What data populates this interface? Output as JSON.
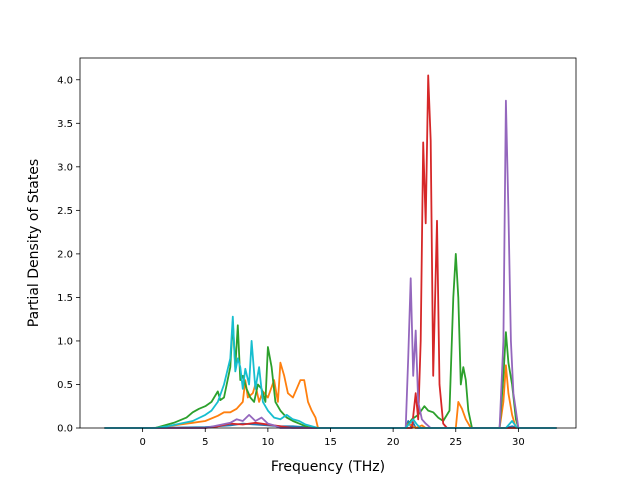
{
  "chart_data": {
    "type": "line",
    "title": "",
    "xlabel": "Frequency (THz)",
    "ylabel": "Partial Density of States",
    "xlim": [
      -5.0,
      34.6
    ],
    "ylim": [
      0.0,
      4.25
    ],
    "xticks": [
      0,
      5,
      10,
      15,
      20,
      25,
      30
    ],
    "xtick_labels": [
      "0",
      "5",
      "10",
      "15",
      "20",
      "25",
      "30"
    ],
    "yticks": [
      0.0,
      0.5,
      1.0,
      1.5,
      2.0,
      2.5,
      3.0,
      3.5,
      4.0
    ],
    "ytick_labels": [
      "0.0",
      "0.5",
      "1.0",
      "1.5",
      "2.0",
      "2.5",
      "3.0",
      "3.5",
      "4.0"
    ],
    "grid": false,
    "legend": "none",
    "series": [
      {
        "color": "#1f77b4",
        "points": [
          [
            -3,
            0
          ],
          [
            0,
            0
          ],
          [
            5,
            0.01
          ],
          [
            7,
            0.03
          ],
          [
            8,
            0.05
          ],
          [
            9,
            0.04
          ],
          [
            10,
            0.03
          ],
          [
            11,
            0.02
          ],
          [
            12,
            0.02
          ],
          [
            13,
            0.01
          ],
          [
            14,
            0
          ],
          [
            21,
            0
          ],
          [
            21.2,
            0.08
          ],
          [
            21.4,
            0.02
          ],
          [
            21.6,
            0.06
          ],
          [
            21.8,
            0
          ],
          [
            29,
            0
          ],
          [
            29.5,
            0.02
          ],
          [
            30,
            0
          ],
          [
            33,
            0
          ]
        ]
      },
      {
        "color": "#ff7f0e",
        "points": [
          [
            -3,
            0
          ],
          [
            1,
            0
          ],
          [
            2,
            0.02
          ],
          [
            3,
            0.04
          ],
          [
            4,
            0.06
          ],
          [
            5,
            0.08
          ],
          [
            6,
            0.14
          ],
          [
            6.5,
            0.18
          ],
          [
            7,
            0.18
          ],
          [
            7.5,
            0.22
          ],
          [
            8,
            0.3
          ],
          [
            8.2,
            0.55
          ],
          [
            8.4,
            0.35
          ],
          [
            8.8,
            0.4
          ],
          [
            9,
            0.5
          ],
          [
            9.3,
            0.3
          ],
          [
            9.6,
            0.42
          ],
          [
            10,
            0.35
          ],
          [
            10.5,
            0.55
          ],
          [
            10.8,
            0.3
          ],
          [
            11,
            0.75
          ],
          [
            11.3,
            0.6
          ],
          [
            11.6,
            0.4
          ],
          [
            12,
            0.35
          ],
          [
            12.3,
            0.45
          ],
          [
            12.6,
            0.55
          ],
          [
            12.9,
            0.55
          ],
          [
            13.2,
            0.3
          ],
          [
            13.5,
            0.2
          ],
          [
            13.8,
            0.12
          ],
          [
            14,
            0
          ],
          [
            21,
            0
          ],
          [
            21.2,
            0.05
          ],
          [
            21.8,
            0
          ],
          [
            22.3,
            0.03
          ],
          [
            22.6,
            0
          ],
          [
            25,
            0
          ],
          [
            25.2,
            0.3
          ],
          [
            25.5,
            0.22
          ],
          [
            25.8,
            0.1
          ],
          [
            26,
            0.05
          ],
          [
            26.2,
            0
          ],
          [
            28.5,
            0
          ],
          [
            28.8,
            0.3
          ],
          [
            29,
            0.72
          ],
          [
            29.2,
            0.4
          ],
          [
            29.5,
            0.15
          ],
          [
            29.8,
            0
          ],
          [
            33,
            0
          ]
        ]
      },
      {
        "color": "#2ca02c",
        "points": [
          [
            -3,
            0
          ],
          [
            1,
            0
          ],
          [
            1.5,
            0.02
          ],
          [
            2.5,
            0.06
          ],
          [
            3.5,
            0.12
          ],
          [
            4,
            0.18
          ],
          [
            4.5,
            0.22
          ],
          [
            5,
            0.25
          ],
          [
            5.5,
            0.3
          ],
          [
            6,
            0.42
          ],
          [
            6.2,
            0.32
          ],
          [
            6.5,
            0.35
          ],
          [
            7,
            0.7
          ],
          [
            7.2,
            1.22
          ],
          [
            7.4,
            0.7
          ],
          [
            7.6,
            1.18
          ],
          [
            7.8,
            0.55
          ],
          [
            8,
            0.6
          ],
          [
            8.3,
            0.45
          ],
          [
            8.6,
            0.35
          ],
          [
            8.9,
            0.3
          ],
          [
            9.2,
            0.5
          ],
          [
            9.5,
            0.45
          ],
          [
            9.8,
            0.3
          ],
          [
            10,
            0.93
          ],
          [
            10.3,
            0.7
          ],
          [
            10.6,
            0.3
          ],
          [
            11,
            0.2
          ],
          [
            11.5,
            0.12
          ],
          [
            12,
            0.08
          ],
          [
            12.5,
            0.05
          ],
          [
            13,
            0.02
          ],
          [
            13.5,
            0
          ],
          [
            21,
            0
          ],
          [
            21.5,
            0.1
          ],
          [
            22,
            0.15
          ],
          [
            22.5,
            0.25
          ],
          [
            22.8,
            0.2
          ],
          [
            23.2,
            0.18
          ],
          [
            23.6,
            0.12
          ],
          [
            24,
            0.08
          ],
          [
            24.5,
            0.2
          ],
          [
            24.8,
            1.5
          ],
          [
            25,
            2.0
          ],
          [
            25.2,
            1.5
          ],
          [
            25.4,
            0.5
          ],
          [
            25.6,
            0.7
          ],
          [
            25.8,
            0.55
          ],
          [
            26,
            0.2
          ],
          [
            26.3,
            0
          ],
          [
            28.5,
            0
          ],
          [
            28.8,
            0.6
          ],
          [
            29,
            1.1
          ],
          [
            29.2,
            0.75
          ],
          [
            29.5,
            0.5
          ],
          [
            29.8,
            0.1
          ],
          [
            30,
            0
          ],
          [
            33,
            0
          ]
        ]
      },
      {
        "color": "#d62728",
        "points": [
          [
            -3,
            0
          ],
          [
            5,
            0
          ],
          [
            6,
            0.02
          ],
          [
            7,
            0.05
          ],
          [
            8,
            0.04
          ],
          [
            9,
            0.06
          ],
          [
            10,
            0.04
          ],
          [
            11,
            0.02
          ],
          [
            12,
            0
          ],
          [
            21.5,
            0
          ],
          [
            21.8,
            0.4
          ],
          [
            22,
            0.1
          ],
          [
            22.2,
            1.0
          ],
          [
            22.4,
            3.28
          ],
          [
            22.6,
            2.35
          ],
          [
            22.8,
            4.05
          ],
          [
            23,
            3.3
          ],
          [
            23.2,
            0.6
          ],
          [
            23.5,
            2.38
          ],
          [
            23.7,
            0.5
          ],
          [
            24,
            0.05
          ],
          [
            24.3,
            0
          ],
          [
            33,
            0
          ]
        ]
      },
      {
        "color": "#9467bd",
        "points": [
          [
            -3,
            0
          ],
          [
            5,
            0
          ],
          [
            6,
            0.03
          ],
          [
            7,
            0.06
          ],
          [
            7.5,
            0.1
          ],
          [
            8,
            0.08
          ],
          [
            8.5,
            0.15
          ],
          [
            9,
            0.08
          ],
          [
            9.5,
            0.12
          ],
          [
            10,
            0.05
          ],
          [
            10.5,
            0.03
          ],
          [
            11,
            0
          ],
          [
            21,
            0
          ],
          [
            21.2,
            0.8
          ],
          [
            21.4,
            1.72
          ],
          [
            21.6,
            0.6
          ],
          [
            21.8,
            1.12
          ],
          [
            22,
            0.3
          ],
          [
            22.3,
            0.1
          ],
          [
            22.6,
            0.05
          ],
          [
            23,
            0
          ],
          [
            28.5,
            0
          ],
          [
            28.8,
            1.0
          ],
          [
            29,
            3.76
          ],
          [
            29.2,
            2.5
          ],
          [
            29.4,
            1.0
          ],
          [
            29.6,
            0.4
          ],
          [
            29.8,
            0.2
          ],
          [
            30,
            0
          ],
          [
            33,
            0
          ]
        ]
      },
      {
        "color": "#17becf",
        "points": [
          [
            -3,
            0
          ],
          [
            1,
            0
          ],
          [
            2,
            0.02
          ],
          [
            3,
            0.05
          ],
          [
            4,
            0.08
          ],
          [
            5,
            0.15
          ],
          [
            5.5,
            0.2
          ],
          [
            6,
            0.3
          ],
          [
            6.5,
            0.5
          ],
          [
            7,
            0.8
          ],
          [
            7.2,
            1.28
          ],
          [
            7.4,
            0.65
          ],
          [
            7.6,
            0.8
          ],
          [
            7.8,
            0.7
          ],
          [
            8,
            0.45
          ],
          [
            8.2,
            0.68
          ],
          [
            8.5,
            0.5
          ],
          [
            8.7,
            1.0
          ],
          [
            9,
            0.45
          ],
          [
            9.3,
            0.7
          ],
          [
            9.6,
            0.3
          ],
          [
            10,
            0.2
          ],
          [
            10.5,
            0.12
          ],
          [
            11,
            0.1
          ],
          [
            11.5,
            0.15
          ],
          [
            12,
            0.1
          ],
          [
            12.5,
            0.08
          ],
          [
            13,
            0.04
          ],
          [
            14,
            0
          ],
          [
            21,
            0
          ],
          [
            21.3,
            0.05
          ],
          [
            21.6,
            0.1
          ],
          [
            21.9,
            0.04
          ],
          [
            22.2,
            0
          ],
          [
            29,
            0
          ],
          [
            29.5,
            0.08
          ],
          [
            29.9,
            0
          ],
          [
            33,
            0
          ]
        ]
      }
    ]
  }
}
